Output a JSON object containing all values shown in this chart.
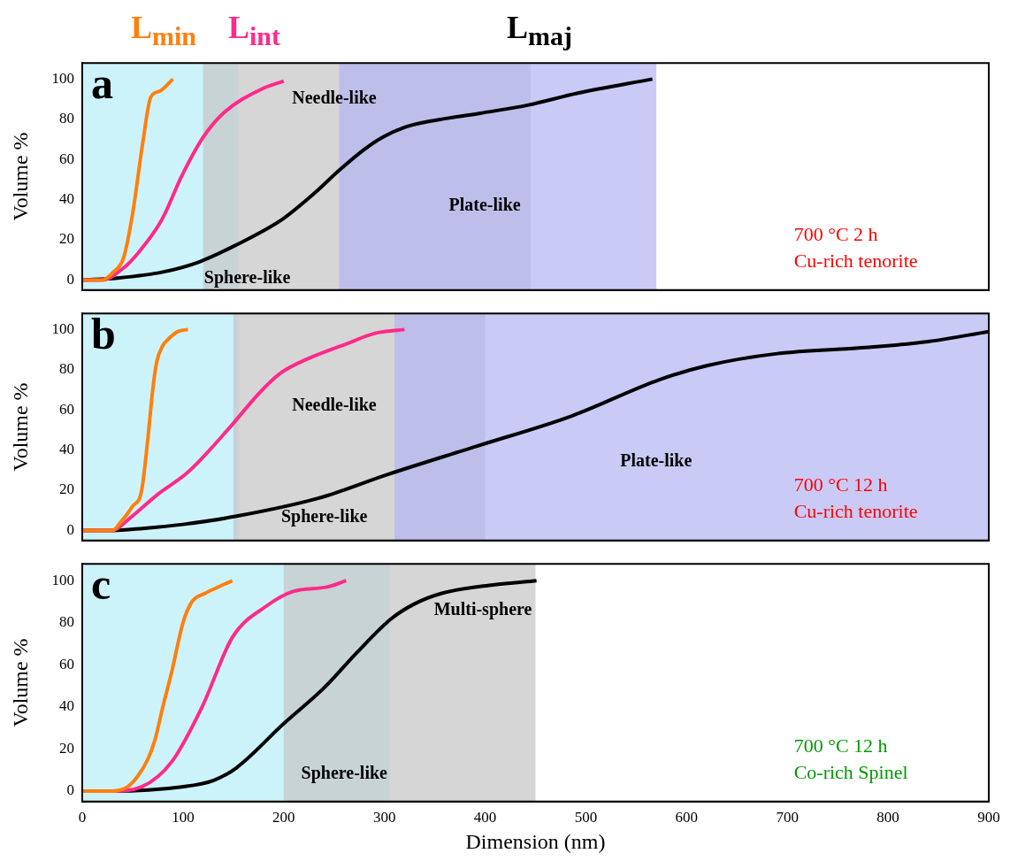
{
  "chart_data": [
    {
      "type": "line",
      "title": "a",
      "ylabel": "Volume %",
      "xlim": [
        0,
        900
      ],
      "xticks": [
        0,
        100,
        200,
        300,
        400,
        500,
        600,
        700,
        800,
        900
      ],
      "ylim": [
        -5,
        108
      ],
      "yticks": [
        0,
        20,
        40,
        60,
        80,
        100
      ],
      "tick_labels": "y",
      "legend": "top left",
      "series": [
        {
          "name": "L$_{min}$",
          "color": "#ff7f0e",
          "x": [
            0,
            20,
            31,
            41,
            50,
            60,
            68,
            77,
            90
          ],
          "values": [
            0,
            0,
            4,
            11,
            33,
            68,
            91,
            94,
            100
          ]
        },
        {
          "name": "L$_{int}$",
          "color": "#ff2a8a",
          "x": [
            0,
            19,
            41,
            58,
            79,
            99,
            120,
            140,
            178,
            200
          ],
          "values": [
            0,
            0,
            6,
            15,
            30,
            52,
            71,
            83,
            95,
            99
          ]
        },
        {
          "name": "L$_{maj}$",
          "color": "#000000",
          "x": [
            0,
            35,
            80,
            116,
            151,
            198,
            230,
            256,
            280,
            298,
            320,
            345,
            395,
            442,
            492,
            566
          ],
          "values": [
            0,
            1,
            4,
            9,
            17,
            30,
            43,
            55,
            65,
            71,
            76,
            79,
            83,
            87,
            93,
            100
          ]
        }
      ],
      "bands": [
        {
          "axis": "x",
          "from": 0,
          "to": 155,
          "color": "#b8eef8",
          "label": "Sphere-like"
        },
        {
          "axis": "x",
          "from": 120,
          "to": 445,
          "color": "#c4c4c4",
          "label": "Needle-like"
        },
        {
          "axis": "x",
          "from": 255,
          "to": 570,
          "color": "#b4b4f2",
          "label": "Plate-like"
        }
      ],
      "annotations": [
        "700 °C 2 h",
        "Cu-rich tenorite"
      ]
    },
    {
      "type": "line",
      "title": "b",
      "ylabel": "Volume %",
      "xlim": [
        0,
        900
      ],
      "xticks": [
        0,
        100,
        200,
        300,
        400,
        500,
        600,
        700,
        800,
        900
      ],
      "ylim": [
        -5,
        108
      ],
      "yticks": [
        0,
        20,
        40,
        60,
        80,
        100
      ],
      "tick_labels": "y",
      "series": [
        {
          "color": "#ff7f0e",
          "x": [
            0,
            30,
            38,
            50,
            59,
            65,
            70,
            74,
            80,
            85,
            95,
            105
          ],
          "values": [
            0,
            0,
            4,
            12,
            20,
            45,
            70,
            84,
            92,
            95,
            99,
            100
          ]
        },
        {
          "color": "#ff2a8a",
          "x": [
            0,
            30,
            47,
            75,
            105,
            146,
            175,
            196,
            222,
            263,
            290,
            320
          ],
          "values": [
            0,
            0,
            6,
            18,
            29,
            51,
            68,
            78,
            85,
            93,
            98,
            100
          ]
        },
        {
          "color": "#000000",
          "x": [
            0,
            30,
            60,
            100,
            152,
            234,
            304,
            392,
            486,
            573,
            620,
            690,
            777,
            840,
            900
          ],
          "values": [
            0,
            0,
            1,
            3,
            7,
            16,
            28,
            42,
            57,
            75,
            82,
            88,
            91,
            94,
            99
          ]
        }
      ],
      "bands": [
        {
          "axis": "x",
          "from": 0,
          "to": 155,
          "color": "#b8eef8",
          "label": "Sphere-like"
        },
        {
          "axis": "x",
          "from": 150,
          "to": 400,
          "color": "#c4c4c4",
          "label": "Needle-like"
        },
        {
          "axis": "x",
          "from": 310,
          "to": 900,
          "color": "#b4b4f2",
          "label": "Plate-like"
        }
      ],
      "annotations": [
        "700 °C 12 h",
        "Cu-rich tenorite"
      ]
    },
    {
      "type": "line",
      "title": "c",
      "xlabel": "Dimension (nm)",
      "ylabel": "Volume %",
      "xlim": [
        0,
        900
      ],
      "xticks": [
        0,
        100,
        200,
        300,
        400,
        500,
        600,
        700,
        800,
        900
      ],
      "ylim": [
        -5,
        108
      ],
      "yticks": [
        0,
        20,
        40,
        60,
        80,
        100
      ],
      "series": [
        {
          "color": "#ff7f0e",
          "x": [
            0,
            30,
            45,
            55,
            65,
            72,
            80,
            89,
            100,
            109,
            122,
            135,
            149
          ],
          "values": [
            0,
            0,
            2,
            7,
            15,
            24,
            40,
            57,
            80,
            90,
            94,
            97,
            100
          ]
        },
        {
          "color": "#ff2a8a",
          "x": [
            0,
            30,
            59,
            89,
            119,
            149,
            183,
            210,
            243,
            262
          ],
          "values": [
            0,
            0,
            2,
            14,
            40,
            73,
            88,
            95,
            97,
            100
          ]
        },
        {
          "color": "#000000",
          "x": [
            0,
            30,
            99,
            130,
            153,
            200,
            240,
            273,
            307,
            330,
            357,
            408,
            451
          ],
          "values": [
            0,
            0,
            2,
            5,
            11,
            32,
            49,
            66,
            82,
            89,
            94,
            98,
            100
          ]
        }
      ],
      "bands": [
        {
          "axis": "x",
          "from": 0,
          "to": 305,
          "color": "#b8eef8",
          "label": "Sphere-like"
        },
        {
          "axis": "x",
          "from": 200,
          "to": 450,
          "color": "#c4c4c4",
          "label": "Multi-sphere"
        }
      ],
      "annotations": [
        "700 °C 12 h",
        "Co-rich Spinel"
      ]
    }
  ]
}
